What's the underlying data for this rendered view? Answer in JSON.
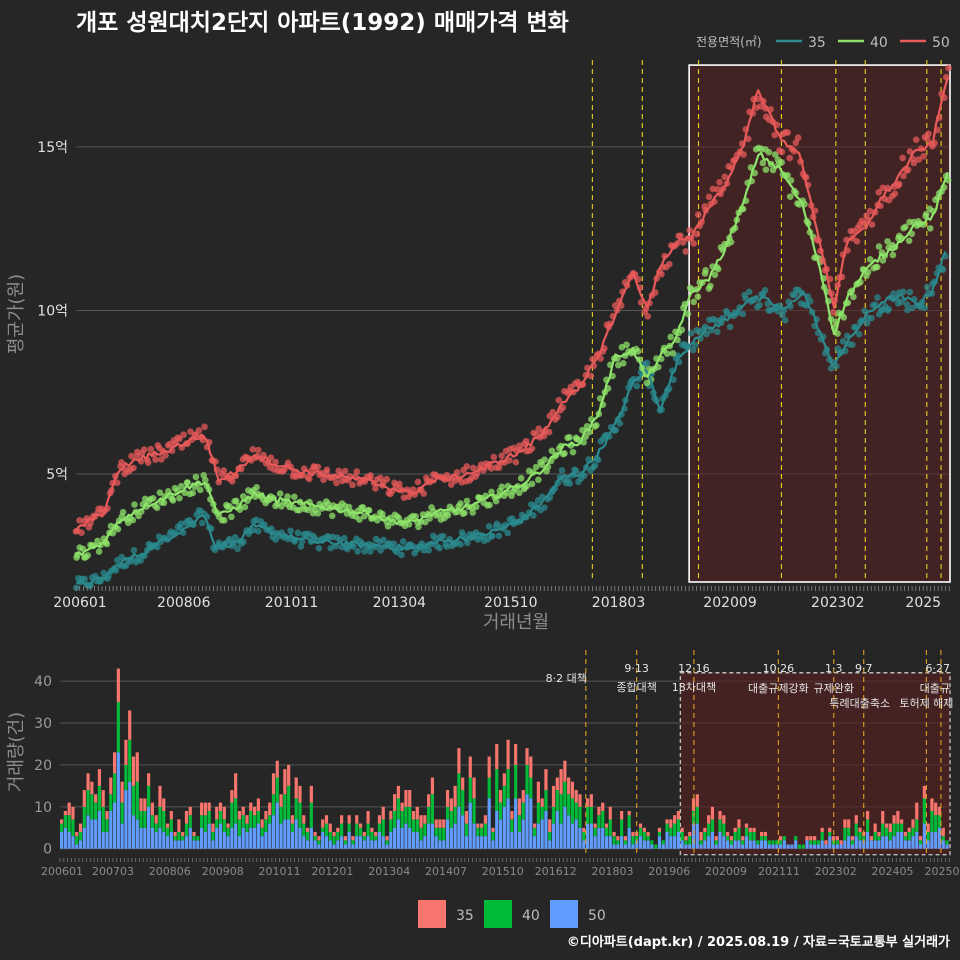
{
  "title": "개포 성원대치2단지 아파트(1992) 매매가격 변화",
  "caption": "©디아파트(dapt.kr) / 2025.08.19 / 자료=국토교통부 실거래가",
  "legend_title": "전용면적(㎡)",
  "colors": {
    "35": "#2a8a8e",
    "40": "#8ee36a",
    "50": "#e85a5a",
    "bar35": "#f8766d",
    "bar40": "#00ba38",
    "bar50": "#619cff",
    "policy": "#e8d21a",
    "policy2": "#e0a020"
  },
  "chart_data": [
    {
      "type": "line",
      "xlabel": "거래년월",
      "ylabel": "평균가(원)",
      "x_ticks": [
        "200601",
        "200806",
        "201011",
        "201304",
        "201510",
        "201803",
        "202009",
        "202302",
        "2025"
      ],
      "y_ticks": [
        "5억",
        "10억",
        "15억"
      ],
      "y_tick_values": [
        5,
        10,
        15
      ],
      "ylim": [
        1.7,
        17.9
      ],
      "unit": "억",
      "highlight_box": {
        "x_from": 2019.75,
        "x_to": 2025.6,
        "y_from": 1.7,
        "y_to": 17.5
      },
      "policy_lines": [
        2017.58,
        2018.7,
        2019.96,
        2021.82,
        2023.04,
        2023.7,
        2025.08,
        2025.4
      ],
      "series": [
        {
          "name": "35",
          "points": [
            [
              2006.0,
              1.6
            ],
            [
              2006.6,
              1.8
            ],
            [
              2007.0,
              2.3
            ],
            [
              2007.5,
              2.6
            ],
            [
              2008.0,
              3.0
            ],
            [
              2008.5,
              3.4
            ],
            [
              2008.9,
              3.8
            ],
            [
              2009.1,
              2.8
            ],
            [
              2009.6,
              2.9
            ],
            [
              2010.0,
              3.4
            ],
            [
              2010.5,
              3.2
            ],
            [
              2011.0,
              3.0
            ],
            [
              2011.5,
              2.9
            ],
            [
              2012.0,
              2.9
            ],
            [
              2012.5,
              2.8
            ],
            [
              2013.0,
              2.8
            ],
            [
              2013.5,
              2.7
            ],
            [
              2014.0,
              2.9
            ],
            [
              2014.5,
              3.0
            ],
            [
              2015.0,
              3.1
            ],
            [
              2015.5,
              3.3
            ],
            [
              2016.0,
              3.6
            ],
            [
              2016.5,
              4.2
            ],
            [
              2016.9,
              4.9
            ],
            [
              2017.3,
              5.0
            ],
            [
              2017.7,
              5.6
            ],
            [
              2018.1,
              6.5
            ],
            [
              2018.5,
              7.8
            ],
            [
              2018.8,
              8.2
            ],
            [
              2019.1,
              7.0
            ],
            [
              2019.5,
              8.5
            ],
            [
              2019.9,
              9.2
            ],
            [
              2020.3,
              9.5
            ],
            [
              2020.7,
              9.8
            ],
            [
              2021.1,
              10.4
            ],
            [
              2021.5,
              10.3
            ],
            [
              2021.9,
              10.0
            ],
            [
              2022.3,
              10.6
            ],
            [
              2022.7,
              9.3
            ],
            [
              2022.95,
              8.3
            ],
            [
              2023.3,
              9.0
            ],
            [
              2023.7,
              9.8
            ],
            [
              2024.1,
              10.3
            ],
            [
              2024.5,
              10.4
            ],
            [
              2024.9,
              10.2
            ],
            [
              2025.2,
              10.6
            ],
            [
              2025.5,
              11.8
            ]
          ]
        },
        {
          "name": "40",
          "points": [
            [
              2006.0,
              2.5
            ],
            [
              2006.6,
              2.9
            ],
            [
              2007.0,
              3.6
            ],
            [
              2007.5,
              4.0
            ],
            [
              2008.0,
              4.3
            ],
            [
              2008.5,
              4.6
            ],
            [
              2008.9,
              4.8
            ],
            [
              2009.2,
              3.7
            ],
            [
              2009.6,
              4.0
            ],
            [
              2010.0,
              4.4
            ],
            [
              2010.5,
              4.2
            ],
            [
              2011.0,
              4.1
            ],
            [
              2011.5,
              4.0
            ],
            [
              2012.0,
              3.9
            ],
            [
              2012.5,
              3.8
            ],
            [
              2013.0,
              3.6
            ],
            [
              2013.5,
              3.5
            ],
            [
              2014.0,
              3.8
            ],
            [
              2014.5,
              3.9
            ],
            [
              2015.0,
              4.1
            ],
            [
              2015.5,
              4.4
            ],
            [
              2016.0,
              4.7
            ],
            [
              2016.5,
              5.2
            ],
            [
              2016.9,
              5.8
            ],
            [
              2017.3,
              6.0
            ],
            [
              2017.7,
              6.8
            ],
            [
              2018.1,
              8.6
            ],
            [
              2018.5,
              8.8
            ],
            [
              2018.8,
              7.9
            ],
            [
              2019.1,
              8.6
            ],
            [
              2019.4,
              9.0
            ],
            [
              2019.8,
              10.5
            ],
            [
              2020.2,
              11.0
            ],
            [
              2020.6,
              12.0
            ],
            [
              2021.0,
              13.4
            ],
            [
              2021.3,
              14.8
            ],
            [
              2021.8,
              14.3
            ],
            [
              2022.3,
              13.2
            ],
            [
              2022.7,
              11.2
            ],
            [
              2023.0,
              9.3
            ],
            [
              2023.3,
              10.4
            ],
            [
              2023.7,
              11.2
            ],
            [
              2024.0,
              11.6
            ],
            [
              2024.4,
              12.0
            ],
            [
              2024.8,
              12.6
            ],
            [
              2025.2,
              12.8
            ],
            [
              2025.55,
              14.2
            ]
          ]
        },
        {
          "name": "50",
          "points": [
            [
              2006.0,
              3.3
            ],
            [
              2006.6,
              3.8
            ],
            [
              2007.0,
              5.2
            ],
            [
              2007.5,
              5.5
            ],
            [
              2008.0,
              5.7
            ],
            [
              2008.5,
              6.0
            ],
            [
              2008.9,
              6.2
            ],
            [
              2009.2,
              4.8
            ],
            [
              2009.6,
              5.1
            ],
            [
              2010.0,
              5.6
            ],
            [
              2010.5,
              5.3
            ],
            [
              2011.0,
              5.1
            ],
            [
              2011.5,
              5.0
            ],
            [
              2012.0,
              4.9
            ],
            [
              2012.5,
              4.8
            ],
            [
              2013.0,
              4.6
            ],
            [
              2013.5,
              4.4
            ],
            [
              2014.0,
              4.8
            ],
            [
              2014.5,
              4.9
            ],
            [
              2015.0,
              5.1
            ],
            [
              2015.5,
              5.4
            ],
            [
              2016.0,
              5.7
            ],
            [
              2016.5,
              6.3
            ],
            [
              2016.9,
              7.2
            ],
            [
              2017.3,
              7.6
            ],
            [
              2017.7,
              8.6
            ],
            [
              2018.1,
              9.9
            ],
            [
              2018.5,
              11.2
            ],
            [
              2018.8,
              10.0
            ],
            [
              2019.1,
              11.4
            ],
            [
              2019.5,
              12.1
            ],
            [
              2019.8,
              12.2
            ],
            [
              2020.2,
              13.2
            ],
            [
              2020.6,
              13.9
            ],
            [
              2021.0,
              15.2
            ],
            [
              2021.3,
              16.8
            ],
            [
              2021.8,
              15.2
            ],
            [
              2022.2,
              14.9
            ],
            [
              2022.7,
              12.0
            ],
            [
              2023.0,
              10.1
            ],
            [
              2023.3,
              12.1
            ],
            [
              2023.7,
              12.5
            ],
            [
              2024.0,
              13.3
            ],
            [
              2024.4,
              14.0
            ],
            [
              2024.8,
              14.8
            ],
            [
              2025.2,
              15.1
            ],
            [
              2025.55,
              17.2
            ]
          ]
        }
      ]
    },
    {
      "type": "bar",
      "stacked": true,
      "ylabel": "거래량(건)",
      "x_ticks": [
        "200601",
        "200703",
        "200806",
        "200908",
        "201011",
        "201201",
        "201304",
        "201407",
        "201510",
        "201612",
        "201803",
        "201906",
        "202009",
        "202111",
        "202302",
        "202405",
        "20250"
      ],
      "y_ticks": [
        "0",
        "10",
        "20",
        "30",
        "40"
      ],
      "y_tick_values": [
        0,
        10,
        20,
        30,
        40
      ],
      "ylim": [
        -1.5,
        46
      ],
      "legend": [
        "35",
        "40",
        "50"
      ],
      "annotations": [
        {
          "date": "8·2 대책",
          "label": "",
          "x": 2017.58
        },
        {
          "date": "9·13",
          "label": "종합대책",
          "x": 2018.7
        },
        {
          "date": "12·16",
          "label": "18차대책",
          "x": 2019.96
        },
        {
          "date": "10·26",
          "label": "대출규제강화",
          "x": 2021.82
        },
        {
          "date": "1·3",
          "label": "규제완화",
          "x": 2023.04
        },
        {
          "date": "9·7",
          "label": "특례대출축소",
          "x": 2023.7
        },
        {
          "date": "",
          "label": "토허제 해제",
          "x": 2025.08
        },
        {
          "date": "6·27",
          "label": "대출규",
          "x": 2025.4
        }
      ],
      "peak_values": [
        [
          2006.0,
          17
        ],
        [
          2006.5,
          14
        ],
        [
          2007.0,
          24
        ],
        [
          2007.3,
          42
        ],
        [
          2007.5,
          30
        ],
        [
          2008.0,
          21
        ],
        [
          2008.4,
          15
        ],
        [
          2008.9,
          10
        ],
        [
          2009.4,
          19
        ],
        [
          2009.6,
          23
        ],
        [
          2010.2,
          14
        ],
        [
          2010.6,
          18
        ],
        [
          2011.0,
          20
        ],
        [
          2011.5,
          14
        ],
        [
          2012.0,
          10
        ],
        [
          2012.5,
          8
        ],
        [
          2013.0,
          10
        ],
        [
          2013.5,
          14
        ],
        [
          2014.0,
          18
        ],
        [
          2014.5,
          22
        ],
        [
          2014.9,
          23
        ],
        [
          2015.3,
          20
        ],
        [
          2015.8,
          24
        ],
        [
          2016.2,
          22
        ],
        [
          2016.7,
          18
        ],
        [
          2017.1,
          25
        ],
        [
          2017.5,
          14
        ],
        [
          2018.0,
          10
        ],
        [
          2018.5,
          8
        ],
        [
          2019.0,
          4
        ],
        [
          2019.5,
          8
        ],
        [
          2020.0,
          12
        ],
        [
          2020.6,
          8
        ],
        [
          2021.2,
          6
        ],
        [
          2021.8,
          3
        ],
        [
          2022.5,
          3
        ],
        [
          2023.1,
          6
        ],
        [
          2023.6,
          8
        ],
        [
          2024.2,
          9
        ],
        [
          2024.8,
          10
        ],
        [
          2025.05,
          16
        ],
        [
          2025.5,
          7
        ]
      ]
    }
  ]
}
